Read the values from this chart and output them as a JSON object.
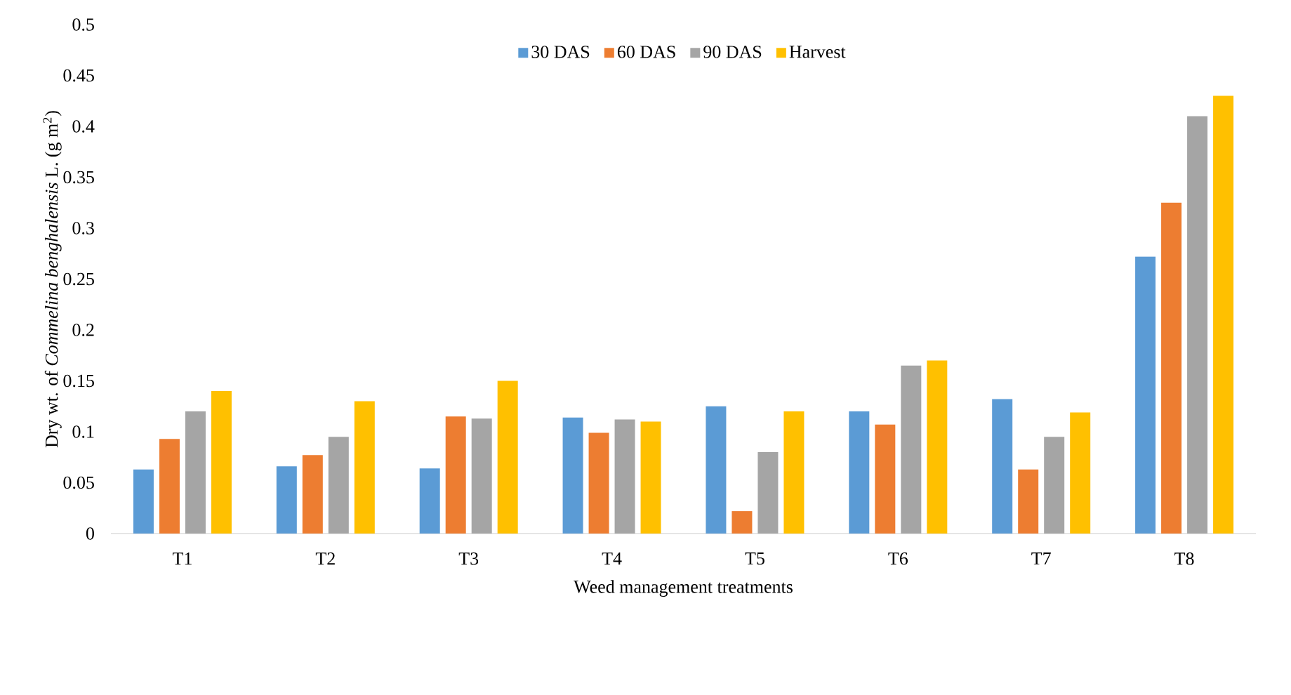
{
  "chart_data": {
    "type": "bar",
    "xlabel": "Weed management treatments",
    "ylabel": "Dry wt. of *Commelina benghalensis* L. (g m$^{2}$)",
    "categories": [
      "T1",
      "T2",
      "T3",
      "T4",
      "T5",
      "T6",
      "T7",
      "T8"
    ],
    "series": [
      {
        "name": "30 DAS",
        "color": "#5b9bd5",
        "values": [
          0.063,
          0.066,
          0.064,
          0.114,
          0.125,
          0.12,
          0.132,
          0.272
        ]
      },
      {
        "name": "60 DAS",
        "color": "#ed7d31",
        "values": [
          0.093,
          0.077,
          0.115,
          0.099,
          0.022,
          0.107,
          0.063,
          0.325
        ]
      },
      {
        "name": "90 DAS",
        "color": "#a5a5a5",
        "values": [
          0.12,
          0.095,
          0.113,
          0.112,
          0.08,
          0.165,
          0.095,
          0.41
        ]
      },
      {
        "name": "Harvest",
        "color": "#ffc000",
        "values": [
          0.14,
          0.13,
          0.15,
          0.11,
          0.12,
          0.17,
          0.119,
          0.43
        ]
      }
    ],
    "ylim": [
      0,
      0.5
    ],
    "yticks": [
      0,
      0.05,
      0.1,
      0.15,
      0.2,
      0.25,
      0.3,
      0.35,
      0.4,
      0.45,
      0.5
    ],
    "grid": false,
    "legend": "top"
  }
}
